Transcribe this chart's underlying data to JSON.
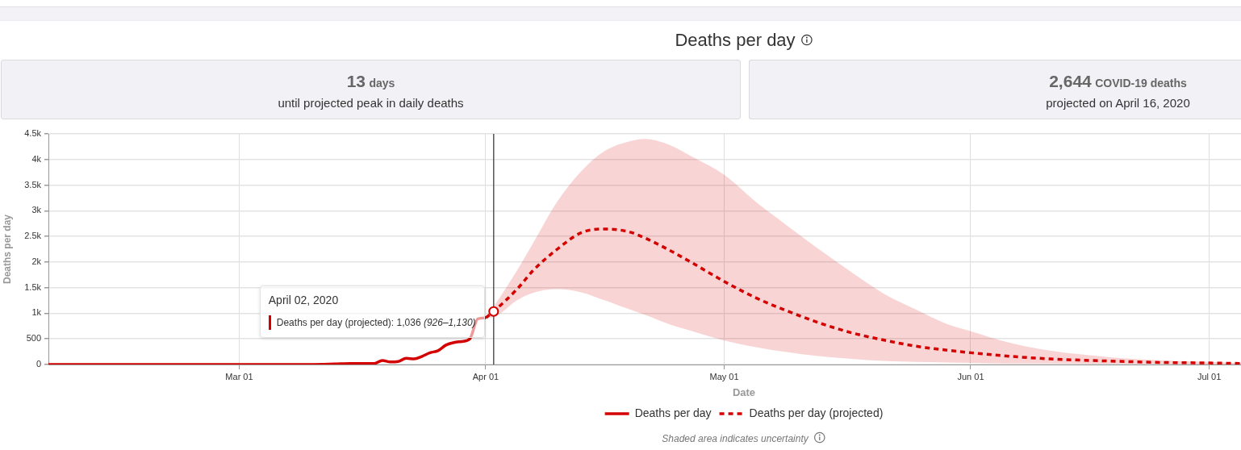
{
  "chart_data": {
    "type": "line",
    "title": "Deaths per day",
    "xlabel": "Date",
    "ylabel": "Deaths per day",
    "annotations": [
      "13 days",
      "until projected peak in daily deaths",
      "2,644 COVID-19 deaths",
      "projected on April 16, 2020",
      {
        "text": "April 02, 2020\nDeaths per day (projected): 1,036 (926–1,130)",
        "x": "2020-04-02",
        "y": 1036
      },
      "Shaded area indicates uncertainty"
    ],
    "xlim": [
      "2020-02-06",
      "2020-07-05"
    ],
    "xticks": [
      {
        "value": "2020-03-01",
        "label": "Mar 01"
      },
      {
        "value": "2020-04-01",
        "label": "Apr 01"
      },
      {
        "value": "2020-05-01",
        "label": "May 01"
      },
      {
        "value": "2020-06-01",
        "label": "Jun 01"
      },
      {
        "value": "2020-07-01",
        "label": "Jul 01"
      }
    ],
    "ylim": [
      0,
      4500
    ],
    "yticks": [
      0,
      500,
      {
        "value": 1000,
        "label": "1k"
      },
      {
        "value": 1500,
        "label": "1.5k"
      },
      {
        "value": 2000,
        "label": "2k"
      },
      {
        "value": 2500,
        "label": "2.5k"
      },
      {
        "value": 3000,
        "label": "3k"
      },
      {
        "value": 3500,
        "label": "3.5k"
      },
      {
        "value": 4000,
        "label": "4k"
      },
      {
        "value": 4500,
        "label": "4.5k"
      }
    ],
    "series": [
      {
        "name": "Deaths per day",
        "color": "#d40000",
        "line_style": "solid",
        "x": [
          "2020-02-06",
          "2020-02-29",
          "2020-03-05",
          "2020-03-10",
          "2020-03-13",
          "2020-03-15",
          "2020-03-16",
          "2020-03-17",
          "2020-03-18",
          "2020-03-19",
          "2020-03-20",
          "2020-03-21",
          "2020-03-22",
          "2020-03-23",
          "2020-03-24",
          "2020-03-25",
          "2020-03-26",
          "2020-03-27",
          "2020-03-28",
          "2020-03-29",
          "2020-03-30",
          "2020-03-31",
          "2020-04-01"
        ],
        "values": [
          0,
          0,
          0,
          0,
          10,
          20,
          20,
          20,
          20,
          80,
          50,
          60,
          120,
          110,
          160,
          230,
          270,
          380,
          430,
          450,
          500,
          890,
          910
        ]
      },
      {
        "name": "Deaths per day (projected)",
        "color": "#d40000",
        "line_style": "dashed",
        "x": [
          "2020-04-01",
          "2020-04-02",
          "2020-04-05",
          "2020-04-07",
          "2020-04-10",
          "2020-04-13",
          "2020-04-16",
          "2020-04-19",
          "2020-04-21",
          "2020-04-24",
          "2020-04-27",
          "2020-05-01",
          "2020-05-05",
          "2020-05-09",
          "2020-05-13",
          "2020-05-17",
          "2020-05-21",
          "2020-05-25",
          "2020-05-29",
          "2020-06-01",
          "2020-06-06",
          "2020-06-11",
          "2020-06-18",
          "2020-06-25",
          "2020-07-01",
          "2020-07-05"
        ],
        "values": [
          910,
          1036,
          1480,
          1840,
          2250,
          2570,
          2644,
          2590,
          2470,
          2240,
          1980,
          1620,
          1300,
          1040,
          810,
          620,
          480,
          360,
          280,
          230,
          160,
          110,
          70,
          40,
          30,
          20
        ],
        "lower": [
          910,
          926,
          1260,
          1400,
          1470,
          1410,
          1250,
          1080,
          970,
          790,
          650,
          470,
          340,
          240,
          160,
          110,
          70,
          50,
          40,
          30,
          20,
          20,
          10,
          10,
          0,
          0
        ],
        "upper": [
          910,
          1130,
          1850,
          2380,
          3180,
          3770,
          4170,
          4350,
          4400,
          4290,
          4050,
          3700,
          3170,
          2700,
          2240,
          1800,
          1390,
          1080,
          790,
          650,
          420,
          270,
          150,
          80,
          50,
          30
        ]
      }
    ],
    "ref_lines": [
      {
        "axis": "x",
        "value": "2020-04-02",
        "color": "#555555"
      }
    ],
    "grid": true,
    "legend": "bottom"
  }
}
